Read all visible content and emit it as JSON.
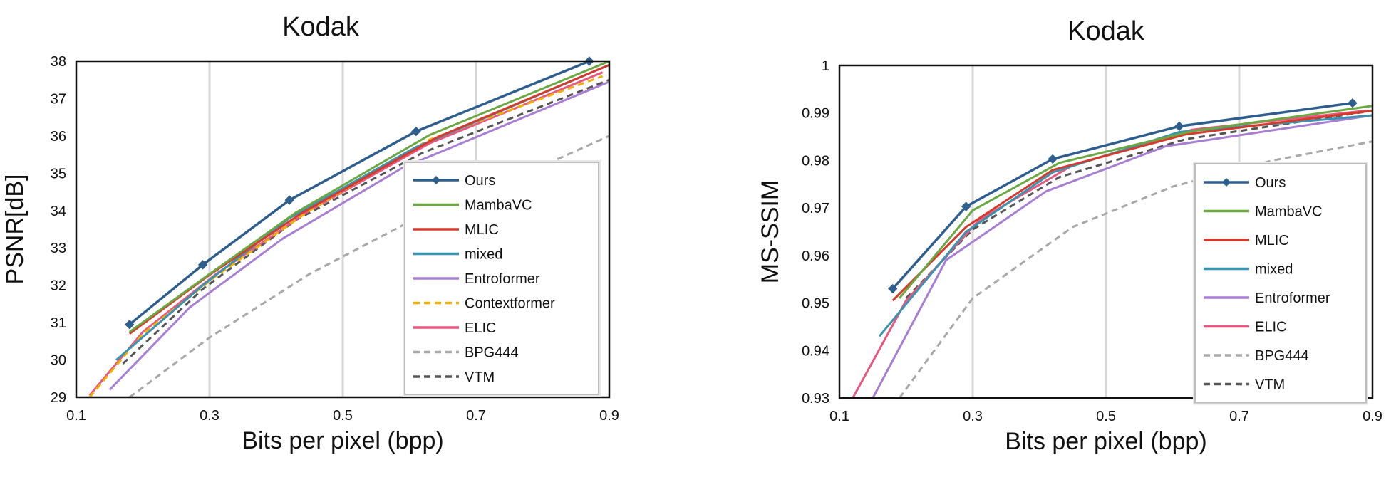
{
  "chart_data": [
    {
      "type": "line",
      "title": "Kodak",
      "xlabel": "Bits per pixel (bpp)",
      "ylabel": "PSNR[dB]",
      "xlim": [
        0.1,
        0.9
      ],
      "ylim": [
        29,
        38
      ],
      "xticks": [
        "0.1",
        "0.3",
        "0.5",
        "0.7",
        "0.9"
      ],
      "yticks": [
        "29",
        "30",
        "31",
        "32",
        "33",
        "34",
        "35",
        "36",
        "37",
        "38"
      ],
      "grid": "vertical",
      "legend_position": "lower-right",
      "series": [
        {
          "name": "Ours",
          "color": "#2e5e8e",
          "dash": false,
          "marker": "diamond",
          "x": [
            0.18,
            0.29,
            0.42,
            0.61,
            0.87
          ],
          "y": [
            30.95,
            32.55,
            34.28,
            36.12,
            38.0
          ]
        },
        {
          "name": "MambaVC",
          "color": "#6aa842",
          "dash": false,
          "x": [
            0.18,
            0.3,
            0.43,
            0.63,
            0.9
          ],
          "y": [
            30.75,
            32.3,
            33.95,
            36.02,
            38.0
          ]
        },
        {
          "name": "MLIC",
          "color": "#d63a2a",
          "dash": false,
          "x": [
            0.18,
            0.3,
            0.44,
            0.64,
            0.9
          ],
          "y": [
            30.7,
            32.28,
            33.95,
            35.95,
            37.9
          ]
        },
        {
          "name": "mixed",
          "color": "#3a93b0",
          "dash": false,
          "x": [
            0.16,
            0.29,
            0.42,
            0.61,
            0.9
          ],
          "y": [
            30.0,
            32.0,
            33.8,
            35.7,
            37.9
          ]
        },
        {
          "name": "Entroformer",
          "color": "#a77ed3",
          "dash": false,
          "x": [
            0.15,
            0.27,
            0.41,
            0.59,
            0.9
          ],
          "y": [
            29.2,
            31.4,
            33.25,
            35.15,
            37.45
          ]
        },
        {
          "name": "Contextformer",
          "color": "#f2b100",
          "dash": true,
          "x": [
            0.12,
            0.2,
            0.31,
            0.45,
            0.63,
            0.89
          ],
          "y": [
            29.0,
            30.7,
            32.25,
            34.0,
            35.9,
            37.6
          ]
        },
        {
          "name": "ELIC",
          "color": "#e8577f",
          "dash": false,
          "x": [
            0.12,
            0.2,
            0.31,
            0.45,
            0.63,
            0.89
          ],
          "y": [
            29.05,
            30.75,
            32.3,
            34.0,
            35.8,
            37.7
          ]
        },
        {
          "name": "BPG444",
          "color": "#a8a8a8",
          "dash": true,
          "x": [
            0.18,
            0.3,
            0.45,
            0.6,
            0.75,
            0.9
          ],
          "y": [
            29.0,
            30.6,
            32.3,
            33.7,
            34.8,
            36.0
          ]
        },
        {
          "name": "VTM",
          "color": "#555555",
          "dash": true,
          "x": [
            0.17,
            0.29,
            0.43,
            0.62,
            0.9
          ],
          "y": [
            29.9,
            31.9,
            33.75,
            35.55,
            37.5
          ]
        }
      ]
    },
    {
      "type": "line",
      "title": "Kodak",
      "xlabel": "Bits per pixel (bpp)",
      "ylabel": "MS-SSIM",
      "xlim": [
        0.1,
        0.9
      ],
      "ylim": [
        0.93,
        1.0
      ],
      "xticks": [
        "0.1",
        "0.3",
        "0.5",
        "0.7",
        "0.9"
      ],
      "yticks": [
        "0.93",
        "0.94",
        "0.95",
        "0.96",
        "0.97",
        "0.98",
        "0.99",
        "1"
      ],
      "grid": "vertical",
      "legend_position": "lower-right",
      "series": [
        {
          "name": "Ours",
          "color": "#2e5e8e",
          "dash": false,
          "marker": "diamond",
          "x": [
            0.18,
            0.29,
            0.42,
            0.61,
            0.87
          ],
          "y": [
            0.953,
            0.9703,
            0.9803,
            0.9872,
            0.9921
          ]
        },
        {
          "name": "MambaVC",
          "color": "#6aa842",
          "dash": false,
          "x": [
            0.19,
            0.3,
            0.43,
            0.63,
            0.9
          ],
          "y": [
            0.951,
            0.9695,
            0.9795,
            0.9862,
            0.9915
          ]
        },
        {
          "name": "MLIC",
          "color": "#d63a2a",
          "dash": false,
          "x": [
            0.18,
            0.29,
            0.42,
            0.62,
            0.9
          ],
          "y": [
            0.9505,
            0.966,
            0.978,
            0.9855,
            0.9905
          ]
        },
        {
          "name": "mixed",
          "color": "#3a93b0",
          "dash": false,
          "x": [
            0.16,
            0.29,
            0.42,
            0.61,
            0.9
          ],
          "y": [
            0.943,
            0.965,
            0.9775,
            0.986,
            0.9895
          ]
        },
        {
          "name": "Entroformer",
          "color": "#a77ed3",
          "dash": false,
          "x": [
            0.15,
            0.26,
            0.41,
            0.59,
            0.9
          ],
          "y": [
            0.93,
            0.959,
            0.9735,
            0.983,
            0.9895
          ]
        },
        {
          "name": "ELIC",
          "color": "#e8577f",
          "dash": false,
          "x": [
            0.12,
            0.2,
            0.31,
            0.45,
            0.63,
            0.89
          ],
          "y": [
            0.93,
            0.9505,
            0.9675,
            0.979,
            0.9865,
            0.9905
          ]
        },
        {
          "name": "BPG444",
          "color": "#a8a8a8",
          "dash": true,
          "x": [
            0.19,
            0.3,
            0.45,
            0.6,
            0.75,
            0.9
          ],
          "y": [
            0.93,
            0.951,
            0.966,
            0.9745,
            0.98,
            0.984
          ]
        },
        {
          "name": "VTM",
          "color": "#555555",
          "dash": true,
          "x": [
            0.2,
            0.3,
            0.43,
            0.62,
            0.9
          ],
          "y": [
            0.951,
            0.9655,
            0.9765,
            0.9845,
            0.9905
          ]
        }
      ]
    }
  ]
}
